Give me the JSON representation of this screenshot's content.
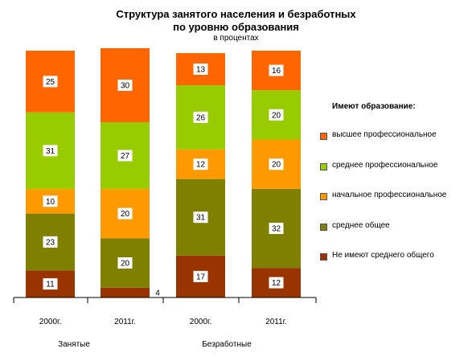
{
  "chart_data": {
    "type": "bar",
    "stacked": true,
    "title_line1": "Структура занятого населения и безработных",
    "title_line2": "по уровню образования",
    "subtitle": "в процентах",
    "legend_title": "Имеют образование:",
    "legend_position": "right",
    "groups": [
      "Занятые",
      "Безработные"
    ],
    "categories": [
      "2000г.",
      "2011г.",
      "2000г.",
      "2011г."
    ],
    "ylim": [
      0,
      100
    ],
    "series": [
      {
        "name": "Не имеют среднего общего",
        "color": "#993300",
        "values": [
          11,
          4,
          17,
          12
        ]
      },
      {
        "name": "среднее общее",
        "color": "#808000",
        "values": [
          23,
          20,
          31,
          32
        ]
      },
      {
        "name": "начальное профессиональное",
        "color": "#FF9900",
        "values": [
          10,
          20,
          12,
          20
        ]
      },
      {
        "name": "среднее профессиональное",
        "color": "#99CC00",
        "values": [
          31,
          27,
          26,
          20
        ]
      },
      {
        "name": "высшее профессиональное",
        "color": "#FF6600",
        "values": [
          25,
          30,
          13,
          16
        ]
      }
    ]
  }
}
